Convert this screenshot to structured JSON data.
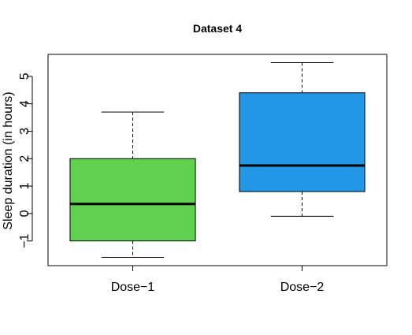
{
  "chart_data": {
    "type": "box",
    "title": "Dataset 4",
    "xlabel": "",
    "ylabel": "Sleep duration (in hours)",
    "ylim": [
      -1.9,
      5.8
    ],
    "yticks": [
      "-1",
      "0",
      "1",
      "2",
      "3",
      "4",
      "5"
    ],
    "yticks_display": [
      "−1",
      "0",
      "1",
      "2",
      "3",
      "4",
      "5"
    ],
    "grid": false,
    "categories": [
      "Dose−1",
      "Dose−2"
    ],
    "boxes": [
      {
        "label": "Dose−1",
        "color": "#61D04F",
        "whisker_low": -1.6,
        "q1": -1.0,
        "median": 0.35,
        "q3": 2.0,
        "whisker_high": 3.7
      },
      {
        "label": "Dose−2",
        "color": "#2297E6",
        "whisker_low": -0.1,
        "q1": 0.8,
        "median": 1.75,
        "q3": 4.4,
        "whisker_high": 5.5
      }
    ]
  }
}
